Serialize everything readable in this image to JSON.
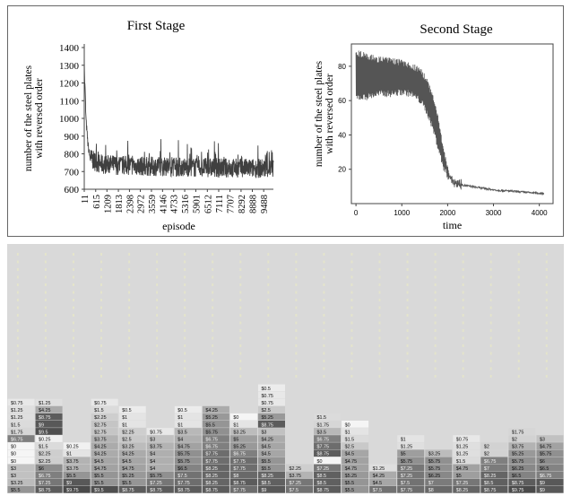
{
  "chart_data": [
    {
      "type": "line",
      "title": "First Stage",
      "xlabel": "episode",
      "ylabel": [
        "number of the steel plates",
        "with reversed order"
      ],
      "ylim": [
        600,
        1400
      ],
      "yticks": [
        600,
        700,
        800,
        900,
        1000,
        1100,
        1200,
        1300,
        1400
      ],
      "xticks": [
        "11",
        "615",
        "1209",
        "1813",
        "2398",
        "2972",
        "3559",
        "4146",
        "4733",
        "5316",
        "5901",
        "6512",
        "7111",
        "7707",
        "8292",
        "8888",
        "9488"
      ],
      "xlim": [
        11,
        10000
      ],
      "series": [
        {
          "color": "#404040",
          "x": [
            11,
            100,
            200,
            300,
            450,
            615,
            800,
            1000,
            1209,
            1500,
            1813,
            2100,
            2398,
            2700,
            2972,
            3300,
            3559,
            3900,
            4146,
            4500,
            4733,
            5000,
            5316,
            5600,
            5901,
            6200,
            6512,
            6800,
            7111,
            7400,
            7707,
            8000,
            8292,
            8600,
            8888,
            9200,
            9488,
            9800,
            10000
          ],
          "y": [
            1330,
            1000,
            860,
            790,
            770,
            760,
            750,
            745,
            745,
            745,
            740,
            740,
            740,
            738,
            737,
            735,
            735,
            735,
            733,
            733,
            732,
            730,
            730,
            730,
            728,
            728,
            728,
            727,
            726,
            726,
            725,
            725,
            725,
            724,
            724,
            724,
            723,
            722,
            722
          ],
          "band": 55
        }
      ],
      "grid": false
    },
    {
      "type": "line",
      "title": "Second Stage",
      "xlabel": "time",
      "ylabel": [
        "number of the steel plates",
        "with reversed order"
      ],
      "ylim": [
        0,
        93
      ],
      "yticks": [
        20,
        40,
        60,
        80
      ],
      "xticks": [
        0,
        1000,
        2000,
        3000,
        4000
      ],
      "xlim": [
        -100,
        4300
      ],
      "series": [
        {
          "color": "#555555",
          "x": [
            0,
            200,
            500,
            800,
            1000,
            1200,
            1400,
            1500,
            1600,
            1700,
            1800,
            1900,
            2000,
            2100,
            2200,
            2500,
            3000,
            3500,
            4000,
            4100
          ],
          "upper": [
            90,
            88,
            86,
            85,
            84,
            82,
            80,
            76,
            70,
            62,
            50,
            35,
            22,
            15,
            12,
            10,
            8,
            7,
            6,
            6
          ],
          "lower": [
            60,
            60,
            62,
            62,
            63,
            62,
            58,
            54,
            48,
            40,
            30,
            20,
            14,
            12,
            11,
            10,
            8,
            7,
            6,
            6
          ]
        }
      ],
      "grid": false
    },
    {
      "type": "heatmap",
      "columns": [
        [
          "$0.75",
          "$1.25",
          "$1.25",
          "$1.5",
          "$1.75",
          "$6.75",
          "$0",
          "$0",
          "$0",
          "$3",
          "$3",
          "$3.25",
          "$5.5"
        ],
        [
          "$1.25",
          "$4.25",
          "$8.75",
          "$9",
          "$9.5",
          "$0.25",
          "$1.5",
          "$2.25",
          "$2.25",
          "$6",
          "$6.75",
          "$7.25",
          "$8.75"
        ],
        [
          "$0.25",
          "$1",
          "$3.75",
          "$3.75",
          "$5.5",
          "$9",
          "$9.75"
        ],
        [
          "$0.75",
          "$1.5",
          "$2.25",
          "$2.75",
          "$2.75",
          "$3.75",
          "$4.25",
          "$4.25",
          "$4.5",
          "$4.75",
          "$5.5",
          "$5.5",
          "$9.5"
        ],
        [
          "$0.5",
          "$1",
          "$1",
          "$2.25",
          "$2.5",
          "$3.25",
          "$4.25",
          "$4.5",
          "$4.75",
          "$5.25",
          "$5.5",
          "$8.75"
        ],
        [
          "$0.75",
          "$3",
          "$3.75",
          "$4",
          "$4",
          "$4",
          "$5.75",
          "$7.25",
          "$8.75"
        ],
        [
          "$0.5",
          "$1",
          "$1",
          "$3.5",
          "$4",
          "$4.75",
          "$5.75",
          "$5.75",
          "$6.5",
          "$7.5",
          "$7.75",
          "$8.75"
        ],
        [
          "$4.25",
          "$5.25",
          "$5.5",
          "$5.75",
          "$6.75",
          "$6.75",
          "$7.75",
          "$7.75",
          "$8.25",
          "$8.25",
          "$8.25",
          "$8.75"
        ],
        [
          "$0",
          "$1",
          "$3.25",
          "$5",
          "$5.25",
          "$6.75",
          "$7.75",
          "$7.75",
          "$8",
          "$8.75",
          "$7.75"
        ],
        [
          "$0.5",
          "$0.75",
          "$0.75",
          "$2.5",
          "$5.25",
          "$8.75",
          "$3",
          "$4.25",
          "$4.5",
          "$4.5",
          "$5.5",
          "$5.5",
          "$8.25",
          "$8.5",
          "$9"
        ],
        [
          "$2.25",
          "$3.75",
          "$7.25",
          "$7.5"
        ],
        [
          "$1.5",
          "$1.75",
          "$3.5",
          "$6.75",
          "$7.75",
          "$8.75",
          "$0",
          "$7.25",
          "$8.5",
          "$8.5",
          "$8.75"
        ],
        [
          "$0",
          "$1",
          "$1.5",
          "$2.5",
          "$4.5",
          "$4.75",
          "$4.75",
          "$5.25",
          "$5.5",
          "$5.5"
        ],
        [
          "$1.25",
          "$4.25",
          "$4.5",
          "$7.5"
        ],
        [
          "$1",
          "$1.25",
          "$5",
          "$5.75",
          "$7.25",
          "$7.25",
          "$7.5",
          "$7.75"
        ],
        [
          "$3.25",
          "$5.75",
          "$5.75",
          "$6.25",
          "$7",
          "$8"
        ],
        [
          "$0.75",
          "$1.25",
          "$1.25",
          "$1.5",
          "$4.75",
          "$5",
          "$7.25",
          "$8.25"
        ],
        [
          "$2",
          "$2",
          "$6.75",
          "$7",
          "$8.25",
          "$8.5",
          "$8.75"
        ],
        [
          "$1.75",
          "$2",
          "$3.75",
          "$5.25",
          "$5.75",
          "$6.25",
          "$6.5",
          "$8.75",
          "$9.75"
        ],
        [
          "$3",
          "$4.75",
          "$5.75",
          "$6",
          "$6.5",
          "$6.75",
          "$9",
          "$9"
        ]
      ]
    }
  ]
}
